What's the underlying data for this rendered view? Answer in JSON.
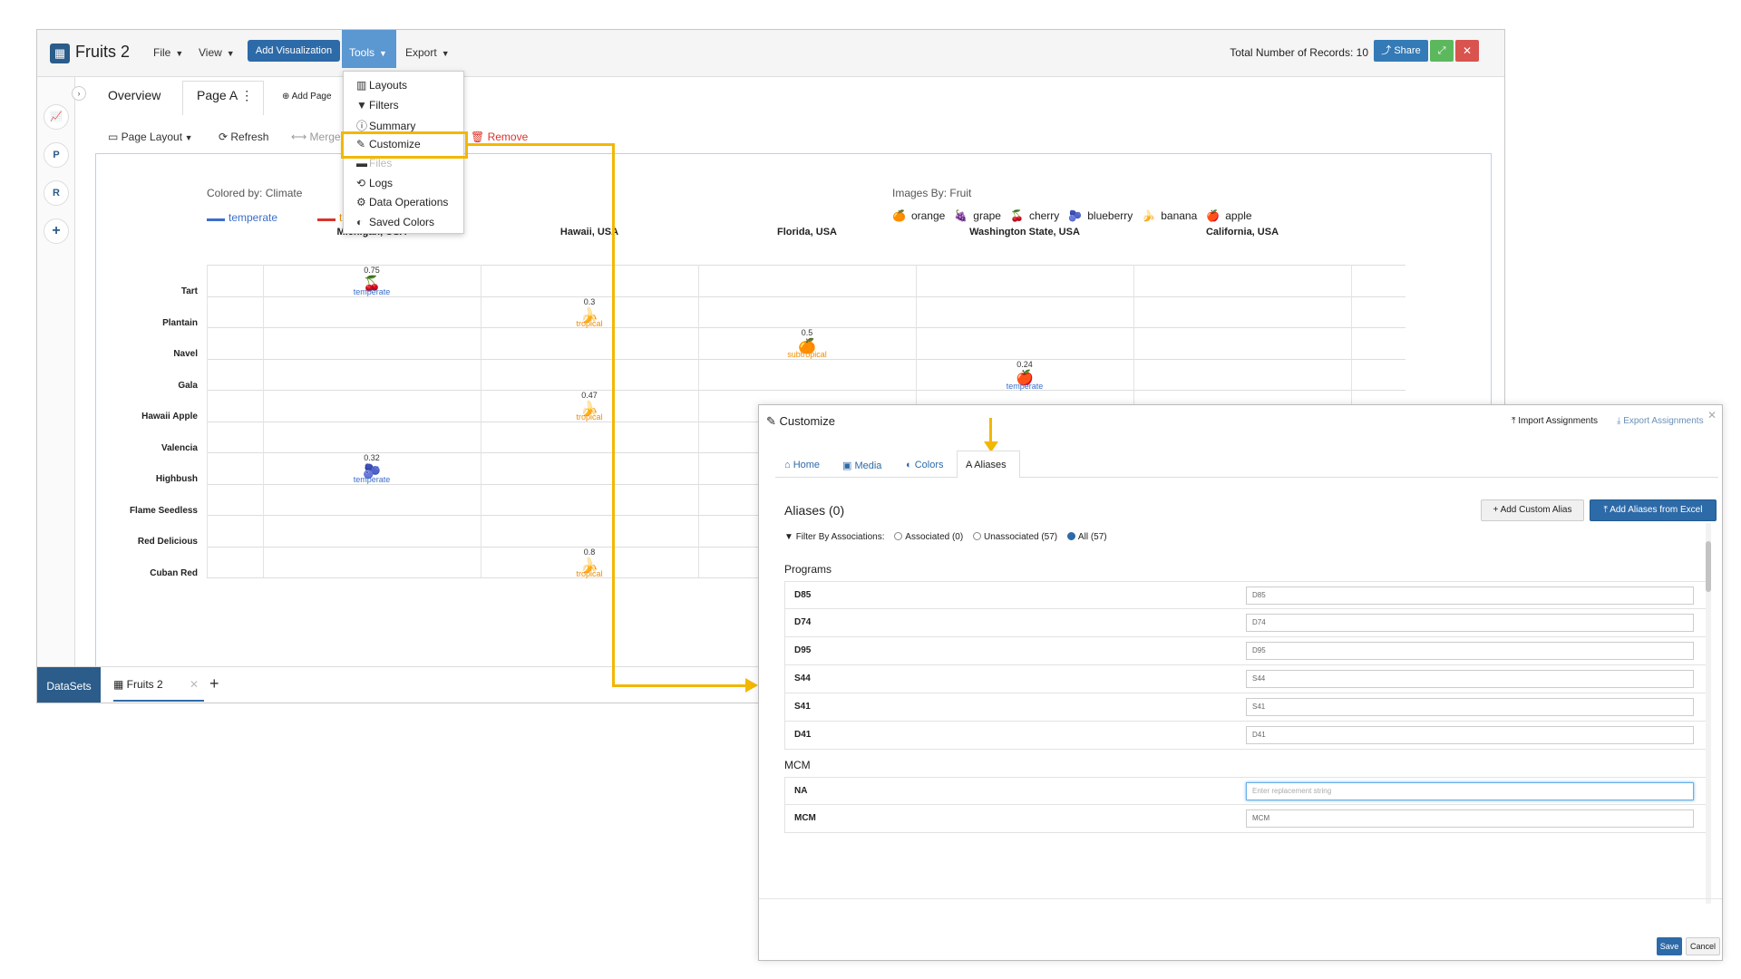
{
  "app": {
    "title": "Fruits 2",
    "menus": [
      "File",
      "View",
      "Tools",
      "Export"
    ],
    "add_visualization": "Add Visualization",
    "records_text": "Total Number of Records: 10",
    "share_label": "Share"
  },
  "rail": {
    "p": "P",
    "r": "R",
    "plus": "+"
  },
  "tabs": {
    "overview": "Overview",
    "page_a": "Page A",
    "add_page": "Add Page"
  },
  "toolbar": {
    "page_layout": "Page Layout",
    "refresh": "Refresh",
    "merge": "Merge",
    "remove": "Remove"
  },
  "tools_menu": {
    "items": [
      "Layouts",
      "Filters",
      "Summary",
      "Customize",
      "Files",
      "Logs",
      "Data Operations",
      "Saved Colors"
    ]
  },
  "legend": {
    "colored_by": "Colored by: Climate",
    "climate": [
      {
        "label": "temperate",
        "color": "#3b6fc9"
      },
      {
        "label": "tropical",
        "color": "#f08c00"
      }
    ],
    "images_by": "Images By: Fruit",
    "fruits": [
      "orange",
      "grape",
      "cherry",
      "blueberry",
      "banana",
      "apple"
    ]
  },
  "chart_data": {
    "type": "scatter",
    "columns": [
      "Michigan, USA",
      "Hawaii, USA",
      "Florida, USA",
      "Washington State, USA",
      "California, USA"
    ],
    "rows": [
      "Tart",
      "Plantain",
      "Navel",
      "Gala",
      "Hawaii Apple",
      "Valencia",
      "Highbush",
      "Flame Seedless",
      "Red Delicious",
      "Cuban Red"
    ],
    "points": [
      {
        "row": "Tart",
        "col": "Michigan, USA",
        "value": "0.75",
        "fruit": "cherry",
        "climate": "temperate"
      },
      {
        "row": "Plantain",
        "col": "Hawaii, USA",
        "value": "0.3",
        "fruit": "banana",
        "climate": "tropical"
      },
      {
        "row": "Navel",
        "col": "Florida, USA",
        "value": "0.5",
        "fruit": "orange",
        "climate": "subtropical"
      },
      {
        "row": "Gala",
        "col": "Washington State, USA",
        "value": "0.24",
        "fruit": "apple",
        "climate": "temperate"
      },
      {
        "row": "Hawaii Apple",
        "col": "Hawaii, USA",
        "value": "0.47",
        "fruit": "banana",
        "climate": "tropical"
      },
      {
        "row": "Highbush",
        "col": "Michigan, USA",
        "value": "0.32",
        "fruit": "blueberry",
        "climate": "temperate"
      },
      {
        "row": "Cuban Red",
        "col": "Hawaii, USA",
        "value": "0.8",
        "fruit": "banana",
        "climate": "tropical"
      }
    ]
  },
  "bottom": {
    "datasets": "DataSets",
    "fruits_tab": "Fruits 2"
  },
  "modal": {
    "title": "Customize",
    "import": "Import Assignments",
    "export": "Export Assignments",
    "tabs": [
      "Home",
      "Media",
      "Colors",
      "Aliases"
    ],
    "aliases_heading": "Aliases (0)",
    "add_custom": "Add Custom Alias",
    "add_excel": "Add Aliases from Excel",
    "filter_label": "Filter By Associations:",
    "filter_options": [
      "Associated (0)",
      "Unassociated (57)",
      "All (57)"
    ],
    "programs_title": "Programs",
    "programs": [
      {
        "key": "D85",
        "value": "D85"
      },
      {
        "key": "D74",
        "value": "D74"
      },
      {
        "key": "D95",
        "value": "D95"
      },
      {
        "key": "S44",
        "value": "S44"
      },
      {
        "key": "S41",
        "value": "S41"
      },
      {
        "key": "D41",
        "value": "D41"
      }
    ],
    "mcm_title": "MCM",
    "mcm": [
      {
        "key": "NA",
        "placeholder": "Enter replacement string"
      },
      {
        "key": "MCM",
        "value": "MCM"
      }
    ],
    "save": "Save",
    "cancel": "Cancel"
  }
}
